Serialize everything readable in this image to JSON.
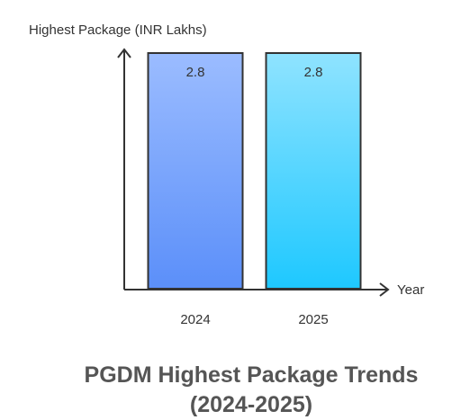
{
  "chart_data": {
    "type": "bar",
    "title": "PGDM Highest Package Trends",
    "subtitle": "(2024-2025)",
    "ylabel": "Highest Package (INR Lakhs)",
    "xlabel": "Year",
    "categories": [
      "2024",
      "2025"
    ],
    "values": [
      2.8,
      2.8
    ],
    "value_labels": [
      "2.8",
      "2.8"
    ],
    "ylim": [
      0,
      2.8
    ],
    "grid": false,
    "legend": "none",
    "colors": {
      "bar_2024_top": "#9bbcff",
      "bar_2024_bottom": "#5b8ff9",
      "bar_2025_top": "#8fe3ff",
      "bar_2025_bottom": "#1ec8ff",
      "bar_stroke": "#333333",
      "axis": "#333333",
      "title": "#555555"
    }
  }
}
